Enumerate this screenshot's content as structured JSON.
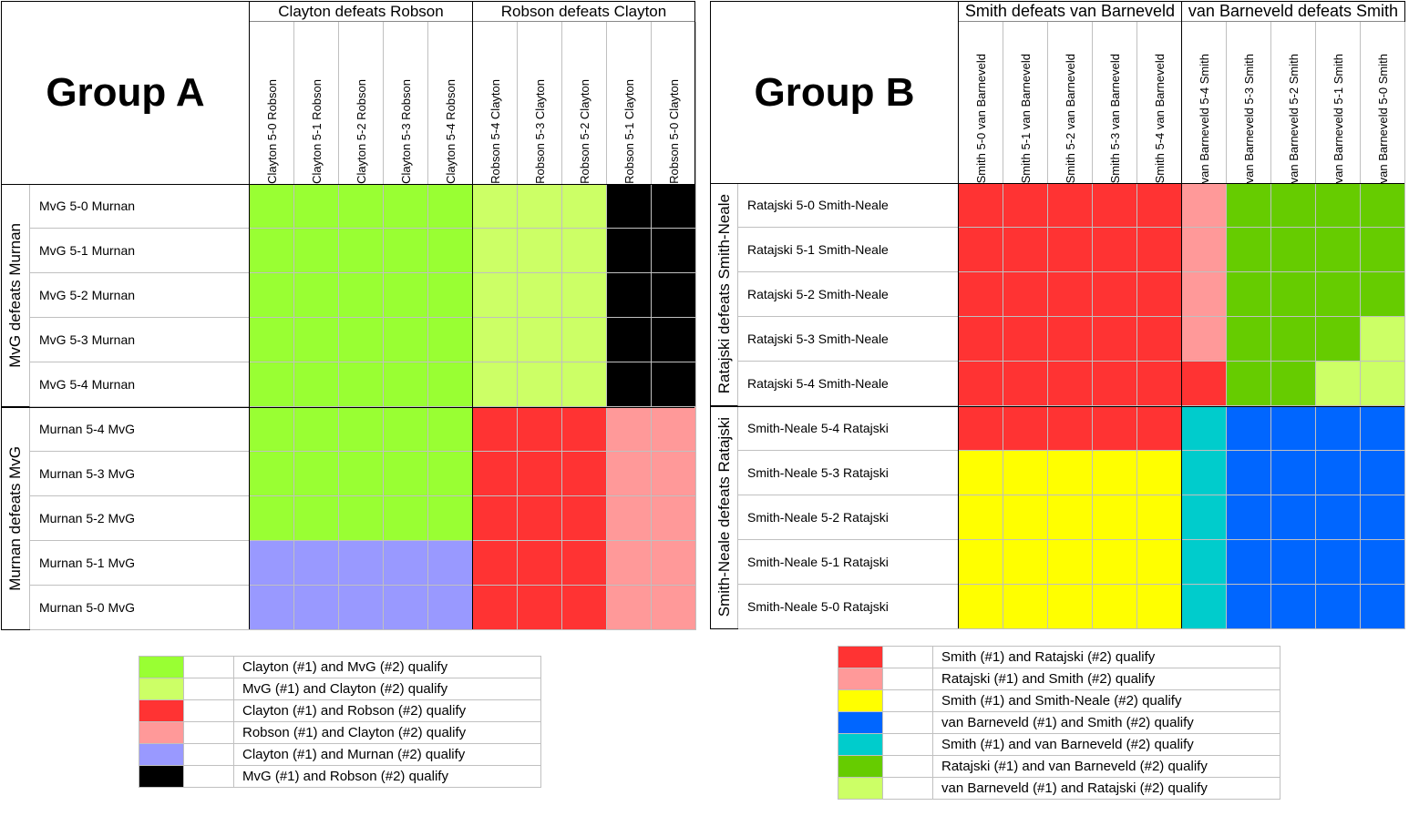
{
  "group_a": {
    "title": "Group A",
    "header_left": "Clayton defeats Robson",
    "header_right": "Robson defeats Clayton",
    "columns": [
      "Clayton 5-0 Robson",
      "Clayton 5-1 Robson",
      "Clayton 5-2 Robson",
      "Clayton 5-3 Robson",
      "Clayton 5-4 Robson",
      "Robson 5-4 Clayton",
      "Robson 5-3 Clayton",
      "Robson 5-2 Clayton",
      "Robson 5-1 Clayton",
      "Robson 5-0 Clayton"
    ],
    "side_top": "MvG defeats Murnan",
    "side_bottom": "Murnan defeats MvG",
    "rows": [
      "MvG 5-0 Murnan",
      "MvG 5-1 Murnan",
      "MvG 5-2 Murnan",
      "MvG 5-3 Murnan",
      "MvG 5-4 Murnan",
      "Murnan 5-4 MvG",
      "Murnan 5-3 MvG",
      "Murnan 5-2 MvG",
      "Murnan 5-1 MvG",
      "Murnan 5-0 MvG"
    ],
    "matrix": [
      [
        0,
        0,
        0,
        0,
        0,
        1,
        1,
        1,
        5,
        5
      ],
      [
        0,
        0,
        0,
        0,
        0,
        1,
        1,
        1,
        5,
        5
      ],
      [
        0,
        0,
        0,
        0,
        0,
        1,
        1,
        1,
        5,
        5
      ],
      [
        0,
        0,
        0,
        0,
        0,
        1,
        1,
        1,
        5,
        5
      ],
      [
        0,
        0,
        0,
        0,
        0,
        1,
        1,
        1,
        5,
        5
      ],
      [
        0,
        0,
        0,
        0,
        0,
        2,
        2,
        2,
        3,
        3
      ],
      [
        0,
        0,
        0,
        0,
        0,
        2,
        2,
        2,
        3,
        3
      ],
      [
        0,
        0,
        0,
        0,
        0,
        2,
        2,
        2,
        3,
        3
      ],
      [
        4,
        4,
        4,
        4,
        4,
        2,
        2,
        2,
        3,
        3
      ],
      [
        4,
        4,
        4,
        4,
        4,
        2,
        2,
        2,
        3,
        3
      ]
    ],
    "legend": [
      {
        "color": "#99ff33",
        "label": "Clayton (#1) and MvG (#2) qualify"
      },
      {
        "color": "#ccff66",
        "label": "MvG (#1) and Clayton (#2) qualify"
      },
      {
        "color": "#ff3333",
        "label": "Clayton (#1) and Robson (#2) qualify"
      },
      {
        "color": "#ff9999",
        "label": "Robson (#1) and Clayton (#2) qualify"
      },
      {
        "color": "#9999ff",
        "label": "Clayton (#1) and Murnan (#2) qualify"
      },
      {
        "color": "#000000",
        "label": "MvG (#1) and Robson (#2) qualify"
      }
    ]
  },
  "group_b": {
    "title": "Group B",
    "header_left": "Smith defeats van Barneveld",
    "header_right": "van Barneveld defeats Smith",
    "columns": [
      "Smith 5-0 van Barneveld",
      "Smith 5-1 van Barneveld",
      "Smith 5-2 van Barneveld",
      "Smith 5-3 van Barneveld",
      "Smith 5-4 van Barneveld",
      "van Barneveld 5-4 Smith",
      "van Barneveld 5-3 Smith",
      "van Barneveld 5-2 Smith",
      "van Barneveld 5-1 Smith",
      "van Barneveld 5-0 Smith"
    ],
    "side_top": "Ratajski defeats Smith-Neale",
    "side_bottom": "Smith-Neale defeats Ratajski",
    "rows": [
      "Ratajski 5-0 Smith-Neale",
      "Ratajski 5-1 Smith-Neale",
      "Ratajski 5-2 Smith-Neale",
      "Ratajski 5-3 Smith-Neale",
      "Ratajski 5-4 Smith-Neale",
      "Smith-Neale 5-4 Ratajski",
      "Smith-Neale 5-3 Ratajski",
      "Smith-Neale 5-2 Ratajski",
      "Smith-Neale 5-1 Ratajski",
      "Smith-Neale 5-0 Ratajski"
    ],
    "matrix": [
      [
        0,
        0,
        0,
        0,
        0,
        1,
        5,
        5,
        5,
        5
      ],
      [
        0,
        0,
        0,
        0,
        0,
        1,
        5,
        5,
        5,
        5
      ],
      [
        0,
        0,
        0,
        0,
        0,
        1,
        5,
        5,
        5,
        5
      ],
      [
        0,
        0,
        0,
        0,
        0,
        1,
        5,
        5,
        5,
        6
      ],
      [
        0,
        0,
        0,
        0,
        0,
        0,
        5,
        5,
        6,
        6
      ],
      [
        0,
        0,
        0,
        0,
        0,
        4,
        3,
        3,
        3,
        3
      ],
      [
        2,
        2,
        2,
        2,
        2,
        4,
        3,
        3,
        3,
        3
      ],
      [
        2,
        2,
        2,
        2,
        2,
        4,
        3,
        3,
        3,
        3
      ],
      [
        2,
        2,
        2,
        2,
        2,
        4,
        3,
        3,
        3,
        3
      ],
      [
        2,
        2,
        2,
        2,
        2,
        4,
        3,
        3,
        3,
        3
      ]
    ],
    "legend": [
      {
        "color": "#ff3333",
        "label": "Smith (#1) and Ratajski (#2) qualify"
      },
      {
        "color": "#ff9999",
        "label": "Ratajski (#1) and Smith (#2) qualify"
      },
      {
        "color": "#ffff00",
        "label": "Smith (#1) and Smith-Neale (#2) qualify"
      },
      {
        "color": "#0066ff",
        "label": "van Barneveld (#1) and Smith (#2) qualify"
      },
      {
        "color": "#00cccc",
        "label": "Smith (#1) and van Barneveld (#2) qualify"
      },
      {
        "color": "#66cc00",
        "label": "Ratajski (#1) and van Barneveld (#2) qualify"
      },
      {
        "color": "#ccff66",
        "label": "van Barneveld (#1) and Ratajski (#2) qualify"
      }
    ]
  }
}
